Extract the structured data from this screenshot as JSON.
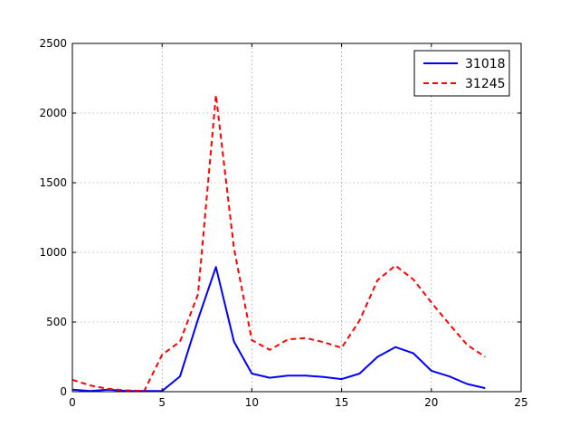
{
  "chart_data": {
    "type": "line",
    "title": "",
    "xlabel": "",
    "ylabel": "",
    "xlim": [
      0,
      25
    ],
    "ylim": [
      0,
      2500
    ],
    "xticks": [
      0,
      5,
      10,
      15,
      20,
      25
    ],
    "yticks": [
      0,
      500,
      1000,
      1500,
      2000,
      2500
    ],
    "xtick_labels": [
      "0",
      "5",
      "10",
      "15",
      "20",
      "25"
    ],
    "ytick_labels": [
      "0",
      "500",
      "1000",
      "1500",
      "2000",
      "2500"
    ],
    "grid": true,
    "legend_position": "top-right",
    "x": [
      0,
      1,
      2,
      3,
      4,
      5,
      6,
      7,
      8,
      9,
      10,
      11,
      12,
      13,
      14,
      15,
      16,
      17,
      18,
      19,
      20,
      21,
      22,
      23
    ],
    "series": [
      {
        "name": "31018",
        "color": "#0000ff",
        "style": "solid",
        "values": [
          15,
          5,
          15,
          5,
          5,
          5,
          110,
          520,
          895,
          360,
          130,
          100,
          115,
          115,
          105,
          90,
          130,
          250,
          320,
          275,
          150,
          110,
          55,
          25
        ]
      },
      {
        "name": "31245",
        "color": "#ff0000",
        "style": "dashed",
        "values": [
          85,
          45,
          20,
          10,
          5,
          265,
          360,
          700,
          2130,
          1030,
          370,
          300,
          375,
          385,
          355,
          315,
          510,
          800,
          905,
          805,
          640,
          485,
          335,
          250
        ]
      }
    ]
  }
}
